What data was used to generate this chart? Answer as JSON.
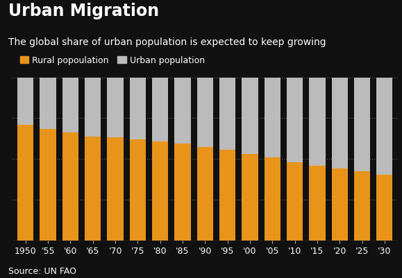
{
  "title": "Urban Migration",
  "subtitle": "The global share of urban population is expected to keep growing",
  "source": "Source: UN FAO",
  "legend": [
    "Rural popoulation",
    "Urban population"
  ],
  "years": [
    1950,
    1955,
    1960,
    1965,
    1970,
    1975,
    1980,
    1985,
    1990,
    1995,
    2000,
    2005,
    2010,
    2015,
    2020,
    2025,
    2030
  ],
  "year_labels": [
    "1950",
    "'55",
    "'60",
    "'65",
    "'70",
    "'75",
    "'80",
    "'85",
    "'90",
    "'95",
    "'00",
    "'05",
    "'10",
    "'15",
    "'20",
    "'25",
    "'30"
  ],
  "rural_pct": [
    70.7,
    68.5,
    66.3,
    63.8,
    63.4,
    61.8,
    60.6,
    59.3,
    57.4,
    55.8,
    53.2,
    51.0,
    48.0,
    46.0,
    44.3,
    42.5,
    40.1
  ],
  "urban_pct": [
    29.3,
    31.5,
    33.7,
    36.2,
    36.6,
    38.2,
    39.4,
    40.7,
    42.6,
    44.2,
    46.8,
    49.0,
    52.0,
    54.0,
    55.7,
    57.5,
    59.9
  ],
  "rural_color": "#E8941A",
  "urban_color": "#BBBBBB",
  "background_color": "#111111",
  "text_color": "#FFFFFF",
  "bar_width": 0.72,
  "title_fontsize": 17,
  "subtitle_fontsize": 10,
  "source_fontsize": 9,
  "tick_fontsize": 9,
  "legend_fontsize": 9,
  "ylim": [
    0,
    100
  ],
  "grid_color": "#666666"
}
